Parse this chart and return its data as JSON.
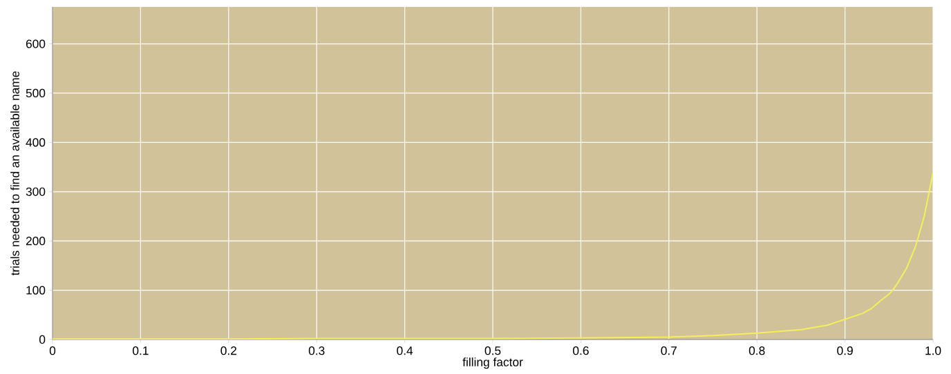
{
  "chart_data": {
    "type": "line",
    "xlabel": "filling factor",
    "ylabel": "trials needed to find an available name",
    "x": [
      0,
      0.1,
      0.2,
      0.3,
      0.4,
      0.5,
      0.6,
      0.7,
      0.75,
      0.8,
      0.85,
      0.88,
      0.9,
      0.92,
      0.93,
      0.94,
      0.95,
      0.954,
      0.96,
      0.97,
      0.98,
      0.99,
      1.0
    ],
    "series": [
      {
        "color": "#f5ef5c",
        "values": [
          1,
          1,
          1,
          2,
          2,
          2,
          3,
          5,
          8,
          13,
          20,
          29,
          41,
          53,
          63,
          78,
          92,
          100,
          115,
          145,
          188,
          250,
          339
        ]
      }
    ],
    "xlim": [
      0,
      1.0
    ],
    "ylim": [
      0,
      675
    ],
    "xticks": [
      {
        "value": 0,
        "label": "0"
      },
      0.1,
      0.2,
      0.3,
      0.4,
      0.5,
      0.6,
      0.7,
      0.8,
      0.9,
      {
        "value": 1.0,
        "label": "1.0"
      }
    ],
    "yticks": [
      0,
      100,
      200,
      300,
      400,
      500,
      600
    ],
    "grid": true,
    "marker": "none",
    "line_style": "solid"
  }
}
